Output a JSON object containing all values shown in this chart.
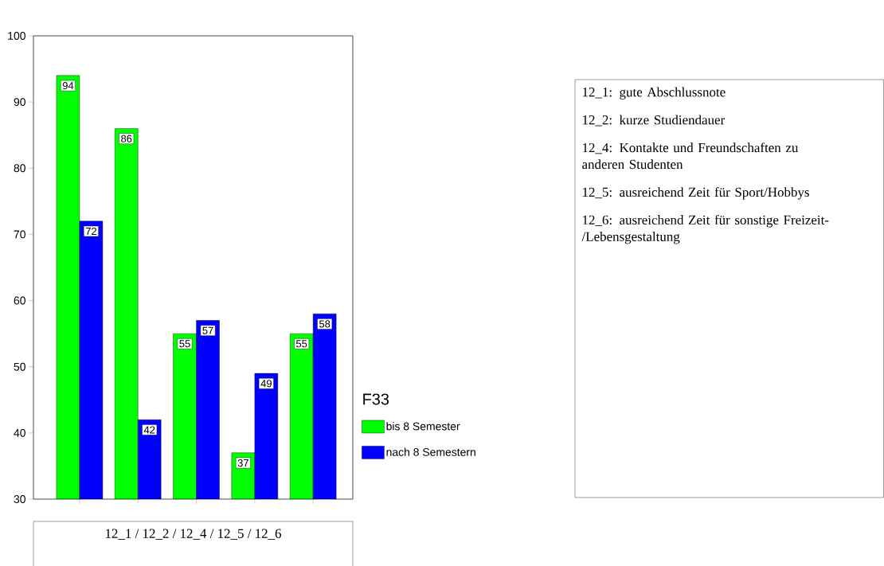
{
  "chart_data": {
    "type": "bar",
    "xlabel": "12_1 / 12_2 / 12_4 / 12_5 / 12_6",
    "legend_title": "F33",
    "categories": [
      null,
      null,
      null,
      null,
      null
    ],
    "series": [
      {
        "name": "bis 8 Semester",
        "color": "#00ff00",
        "values": [
          94,
          86,
          55,
          37,
          55
        ]
      },
      {
        "name": "nach 8 Semestern",
        "color": "#0000ff",
        "values": [
          72,
          42,
          57,
          49,
          58
        ]
      }
    ],
    "ylim": [
      30,
      100
    ],
    "yticks": [
      30,
      40,
      50,
      60,
      70,
      80,
      90,
      100
    ],
    "tick_labels": "y",
    "data_labels": true,
    "legend": "right",
    "annotations": [
      "12_1: gute Abschlussnote",
      "12_2: kurze Studiendauer",
      "12_4: Kontakte und Freundschaften zu anderen Studenten",
      "12_5: ausreichend Zeit für Sport/Hobbys",
      "12_6: ausreichend Zeit für sonstige Freizeit-/Lebensgestaltung"
    ]
  }
}
